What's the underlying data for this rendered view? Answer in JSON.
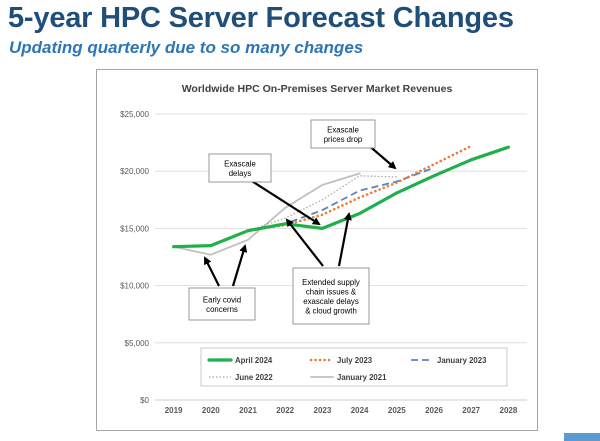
{
  "slide": {
    "title": "5-year HPC Server Forecast Changes",
    "subtitle": "Updating quarterly due to so many changes"
  },
  "colors": {
    "title": "#1f4e79",
    "subtitle": "#2e75b6",
    "april_2024": "#1fb04b",
    "july_2023": "#ed7d31",
    "january_2023": "#5b82c0",
    "june_2022": "#a6a6a6",
    "january_2021": "#c0c0c0",
    "accent_bar": "#5b9bd5"
  },
  "chart_data": {
    "type": "line",
    "title": "Worldwide HPC On-Premises Server Market Revenues",
    "xlabel": "",
    "ylabel": "",
    "x": [
      "2019",
      "2020",
      "2021",
      "2022",
      "2023",
      "2024",
      "2025",
      "2026",
      "2027",
      "2028"
    ],
    "ylim": [
      0,
      25000
    ],
    "yticks": [
      0,
      5000,
      10000,
      15000,
      20000,
      25000
    ],
    "ytick_labels": [
      "$0",
      "$5,000",
      "$10,000",
      "$15,000",
      "$20,000",
      "$25,000"
    ],
    "grid": "horizontal",
    "legend_position": "bottom-inside",
    "series": [
      {
        "name": "April 2024",
        "style": "solid-thick",
        "color": "#1fb04b",
        "values": [
          13400,
          13500,
          14800,
          15400,
          15000,
          16300,
          18100,
          19600,
          21000,
          22100
        ]
      },
      {
        "name": "July 2023",
        "style": "dotted-thick",
        "color": "#ed7d31",
        "values": [
          13400,
          13500,
          14800,
          15300,
          16200,
          17700,
          19000,
          20600,
          22200,
          null
        ]
      },
      {
        "name": "January 2023",
        "style": "dashed",
        "color": "#5b82c0",
        "values": [
          13400,
          13500,
          14800,
          15400,
          16600,
          18300,
          19100,
          20300,
          null,
          null
        ]
      },
      {
        "name": "June 2022",
        "style": "dotted-thin",
        "color": "#a6a6a6",
        "values": [
          13400,
          13500,
          14800,
          15900,
          17500,
          19600,
          19500,
          null,
          null,
          null
        ]
      },
      {
        "name": "January 2021",
        "style": "solid-thin",
        "color": "#c0c0c0",
        "values": [
          13400,
          12700,
          14000,
          16800,
          18800,
          19800,
          null,
          null,
          null,
          null
        ]
      }
    ],
    "annotations": [
      {
        "id": "exascale-prices-drop",
        "text": "Exascale\nprices drop"
      },
      {
        "id": "exascale-delays",
        "text": "Exascale\ndelays"
      },
      {
        "id": "early-covid",
        "text": "Early covid\nconcerns"
      },
      {
        "id": "supply-chain",
        "text": "Extended supply\nchain issues &\nexascale delays\n& cloud growth"
      }
    ]
  }
}
